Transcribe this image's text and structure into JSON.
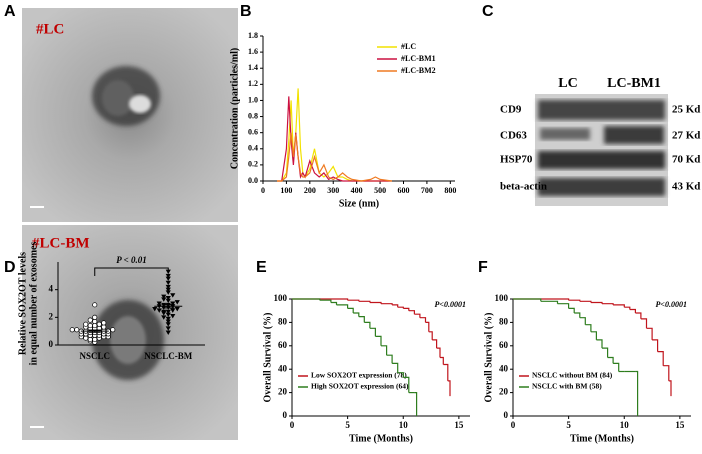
{
  "figure": {
    "panel_labels": [
      "A",
      "B",
      "C",
      "D",
      "E",
      "F"
    ]
  },
  "panel_a": {
    "images": [
      {
        "label": "#LC"
      },
      {
        "label": "#LC-BM"
      }
    ]
  },
  "panel_c": {
    "lanes": [
      "LC",
      "LC-BM1"
    ],
    "rows": [
      {
        "name": "CD9",
        "size": "25 Kd"
      },
      {
        "name": "CD63",
        "size": "27 Kd"
      },
      {
        "name": "HSP70",
        "size": "70 Kd"
      },
      {
        "name": "beta-actin",
        "size": "43 Kd"
      }
    ]
  },
  "chart_data": [
    {
      "type": "line",
      "xlabel": "Size (nm)",
      "ylabel": "Concentration (particles/ml)",
      "legend": "upper right",
      "x": [
        60,
        80,
        100,
        110,
        120,
        130,
        140,
        150,
        160,
        170,
        180,
        200,
        220,
        240,
        260,
        280,
        300,
        320,
        340,
        360,
        380,
        420,
        460,
        480,
        500,
        550
      ],
      "series": [
        {
          "name": "#LC",
          "color": "#f2e200",
          "values": [
            0,
            0,
            0.1,
            0.5,
            1.0,
            0.3,
            0.6,
            1.15,
            0.4,
            0.1,
            0.05,
            0.15,
            0.4,
            0.1,
            0.05,
            0.1,
            0.18,
            0.05,
            0.05,
            0.02,
            0,
            0,
            0,
            0,
            0,
            0
          ]
        },
        {
          "name": "#LC-BM1",
          "color": "#cc1040",
          "values": [
            0,
            0,
            0.4,
            1.05,
            0.5,
            0.2,
            0.6,
            0.3,
            0.05,
            0.1,
            0.05,
            0.25,
            0.1,
            0.05,
            0.1,
            0.02,
            0.05,
            0.02,
            0,
            0,
            0,
            0,
            0,
            0,
            0,
            0
          ]
        },
        {
          "name": "#LC-BM2",
          "color": "#ef7a22",
          "values": [
            0,
            0,
            0.05,
            0.3,
            0.6,
            0.3,
            0.58,
            0.3,
            0.1,
            0.05,
            0.05,
            0.1,
            0.3,
            0.1,
            0.2,
            0.05,
            0.02,
            0.05,
            0.1,
            0.05,
            0.02,
            0,
            0.02,
            0.05,
            0.02,
            0
          ]
        }
      ],
      "xlim": [
        0,
        820
      ],
      "xticks": [
        0,
        100,
        200,
        300,
        400,
        500,
        600,
        700,
        800
      ],
      "ylim": [
        0,
        1.8
      ],
      "yticks": [
        {
          "value": 0,
          "label": "0.0"
        },
        0.2,
        0.4,
        0.6,
        0.8,
        {
          "value": 1,
          "label": "1.0"
        },
        1.2,
        1.4,
        1.6,
        1.8
      ]
    },
    {
      "type": "dotplot",
      "ylabel": [
        "Relative SOX2OT levels",
        "in equal number of  exosomes"
      ],
      "annotation": "P < 0.01",
      "categories": [
        "NSCLC",
        "NSCLC-BM"
      ],
      "values": [
        [
          0.2,
          0.3,
          0.4,
          0.4,
          0.5,
          0.5,
          0.6,
          0.6,
          0.6,
          0.7,
          0.7,
          0.7,
          0.8,
          0.8,
          0.8,
          0.8,
          0.9,
          0.9,
          0.9,
          1.0,
          1.0,
          1.0,
          1.0,
          1.1,
          1.1,
          1.1,
          1.2,
          1.2,
          1.2,
          1.3,
          1.3,
          1.4,
          1.4,
          1.5,
          1.5,
          1.6,
          1.7,
          1.8,
          2.0,
          2.9
        ],
        [
          0.9,
          1.2,
          1.5,
          1.7,
          1.9,
          2.0,
          2.1,
          2.2,
          2.3,
          2.4,
          2.4,
          2.5,
          2.5,
          2.6,
          2.6,
          2.7,
          2.7,
          2.8,
          2.8,
          2.9,
          2.9,
          3.0,
          3.0,
          3.1,
          3.2,
          3.3,
          3.4,
          3.5,
          3.6,
          3.8,
          4.0,
          4.2,
          4.5,
          4.8,
          5.0,
          5.3
        ]
      ],
      "means": [
        1.0,
        2.8
      ],
      "errors": [
        0.08,
        0.12
      ],
      "ylim": [
        0,
        6
      ],
      "yticks": [
        0,
        2,
        4
      ]
    },
    {
      "type": "survival",
      "xlabel": "Time (Months)",
      "ylabel": "Overall Survival (%)",
      "annotation": "P<0.0001",
      "legend": "lower left",
      "series": [
        {
          "name": "Low SOX2OT expression (78)",
          "color": "#c0141c",
          "x": [
            0,
            5,
            6,
            7,
            8,
            9,
            9.5,
            10,
            10.5,
            11,
            11.5,
            12,
            12.3,
            12.6,
            13,
            13.3,
            13.6,
            14,
            14.2
          ],
          "values": [
            100,
            99,
            98,
            97,
            96,
            95,
            93,
            92,
            90,
            87,
            84,
            80,
            72,
            65,
            58,
            50,
            44,
            30,
            17
          ]
        },
        {
          "name": "High SOX2OT expression (64)",
          "color": "#2e7d1e",
          "x": [
            0,
            2.5,
            3.5,
            4,
            5,
            5.5,
            6,
            6.5,
            7,
            7.5,
            8,
            8.5,
            9,
            9.5,
            10,
            10.5,
            11,
            11.2
          ],
          "values": [
            100,
            99,
            97,
            95,
            92,
            88,
            85,
            80,
            75,
            68,
            60,
            52,
            45,
            37,
            33,
            20,
            20,
            0
          ]
        }
      ],
      "xlim": [
        0,
        16
      ],
      "xticks": [
        0,
        5,
        10,
        15
      ],
      "ylim": [
        0,
        100
      ],
      "yticks": [
        0,
        20,
        40,
        60,
        80,
        100
      ]
    },
    {
      "type": "survival",
      "xlabel": "Time (Months)",
      "ylabel": "Overall Survival (%)",
      "annotation": "P<0.0001",
      "legend": "lower left",
      "series": [
        {
          "name": "NSCLC without BM (84)",
          "color": "#c0141c",
          "x": [
            0,
            5,
            6,
            7,
            8,
            9,
            10,
            10.5,
            11,
            11.5,
            12,
            12.5,
            13,
            13.5,
            14,
            14.2
          ],
          "values": [
            100,
            99,
            98,
            97,
            96,
            95,
            93,
            91,
            88,
            83,
            75,
            65,
            55,
            43,
            30,
            17
          ]
        },
        {
          "name": "NSCLC with BM (58)",
          "color": "#2e7d1e",
          "x": [
            0,
            2.5,
            4,
            5,
            5.5,
            6,
            6.5,
            7,
            7.5,
            8,
            8.5,
            9,
            9.5,
            10,
            11,
            11.2
          ],
          "values": [
            100,
            98,
            96,
            92,
            88,
            84,
            78,
            72,
            65,
            58,
            50,
            45,
            38,
            38,
            38,
            0
          ]
        }
      ],
      "xlim": [
        0,
        16
      ],
      "xticks": [
        0,
        5,
        10,
        15
      ],
      "ylim": [
        0,
        100
      ],
      "yticks": [
        0,
        20,
        40,
        60,
        80,
        100
      ]
    }
  ]
}
